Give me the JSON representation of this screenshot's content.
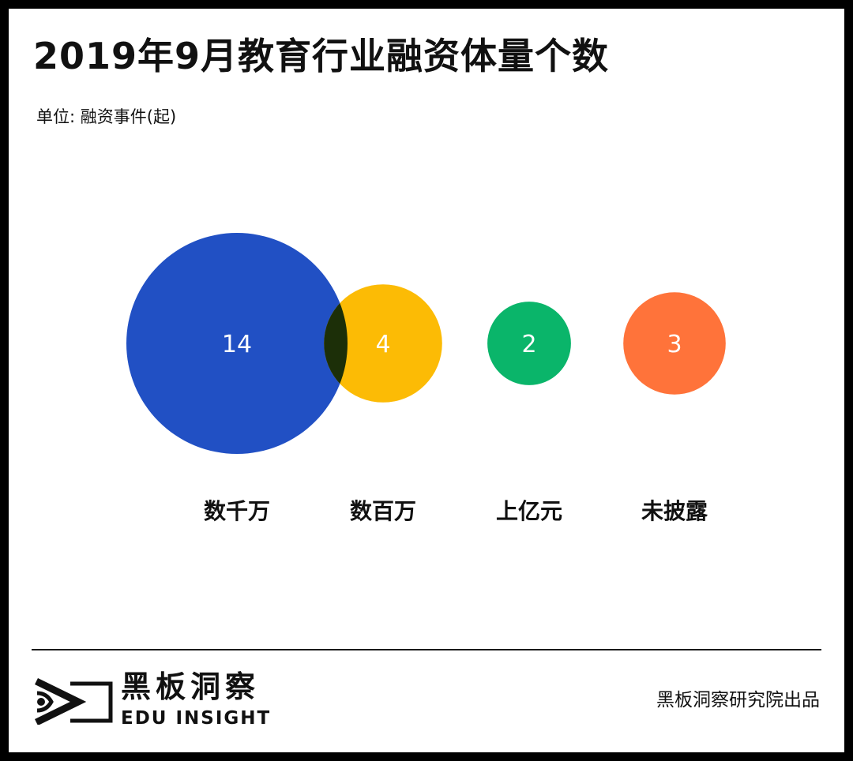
{
  "header": {
    "title": "2019年9月教育行业融资体量个数",
    "unit": "单位: 融资事件(起)"
  },
  "chart_data": {
    "type": "bubble",
    "title": "2019年9月教育行业融资体量个数",
    "unit": "单位: 融资事件(起)",
    "categories": [
      "数千万",
      "数百万",
      "上亿元",
      "未披露"
    ],
    "values": [
      14,
      4,
      2,
      3
    ],
    "colors": [
      "#2150C4",
      "#FCBB05",
      "#0AB56A",
      "#FF733A"
    ],
    "overlap_color": "#1C2F08",
    "legend": "none",
    "grid": false
  },
  "footer": {
    "brand_cn": "黑板洞察",
    "brand_en": "EDU INSIGHT",
    "credit": "黑板洞察研究院出品"
  }
}
